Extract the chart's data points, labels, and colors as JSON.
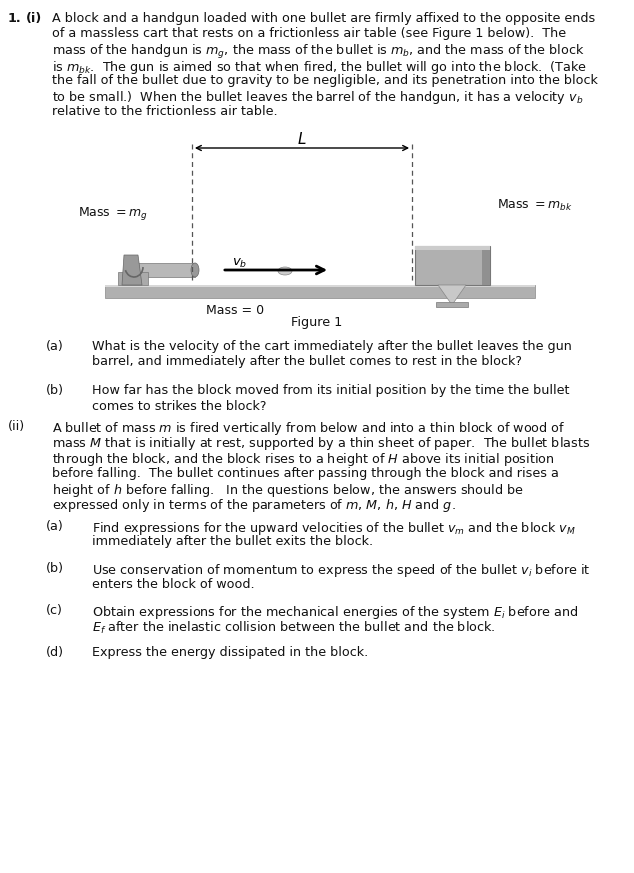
{
  "bg_color": "#ffffff",
  "fig_width": 6.34,
  "fig_height": 8.73,
  "dpi": 100,
  "para1_lines": [
    "A block and a handgun loaded with one bullet are firmly affixed to the opposite ends",
    "of a massless cart that rests on a frictionless air table (see Figure 1 below).  The",
    "mass of the handgun is $m_g$, the mass of the bullet is $m_b$, and the mass of the block",
    "is $m_{bk}$.  The gun is aimed so that when fired, the bullet will go into the block.  (Take",
    "the fall of the bullet due to gravity to be negligible, and its penetration into the block",
    "to be small.)  When the bullet leaves the barrel of the handgun, it has a velocity $v_b$",
    "relative to the frictionless air table."
  ],
  "part_ia_lines": [
    "What is the velocity of the cart immediately after the bullet leaves the gun",
    "barrel, and immediately after the bullet comes to rest in the block?"
  ],
  "part_ib_lines": [
    "How far has the block moved from its initial position by the time the bullet",
    "comes to strikes the block?"
  ],
  "part_ii_lines": [
    "A bullet of mass $m$ is fired vertically from below and into a thin block of wood of",
    "mass $M$ that is initially at rest, supported by a thin sheet of paper.  The bullet blasts",
    "through the block, and the block rises to a height of $H$ above its initial position",
    "before falling.  The bullet continues after passing through the block and rises a",
    "height of $h$ before falling.   In the questions below, the answers should be",
    "expressed only in terms of the parameters of $m$, $M$, $h$, $H$ and $g$."
  ],
  "part_iia_lines": [
    "Find expressions for the upward velocities of the bullet $v_m$ and the block $v_M$",
    "immediately after the bullet exits the block."
  ],
  "part_iib_lines": [
    "Use conservation of momentum to express the speed of the bullet $v_i$ before it",
    "enters the block of wood."
  ],
  "part_iic_lines": [
    "Obtain expressions for the mechanical energies of the system $E_i$ before and",
    "$E_f$ after the inelastic collision between the bullet and the block."
  ],
  "part_iid_lines": [
    "Express the energy dissipated in the block."
  ],
  "cart_color": "#999999",
  "block_color": "#aaaaaa",
  "gun_color": "#888888",
  "arrow_color": "#111111",
  "line_color": "#555555",
  "text_color": "#111111"
}
